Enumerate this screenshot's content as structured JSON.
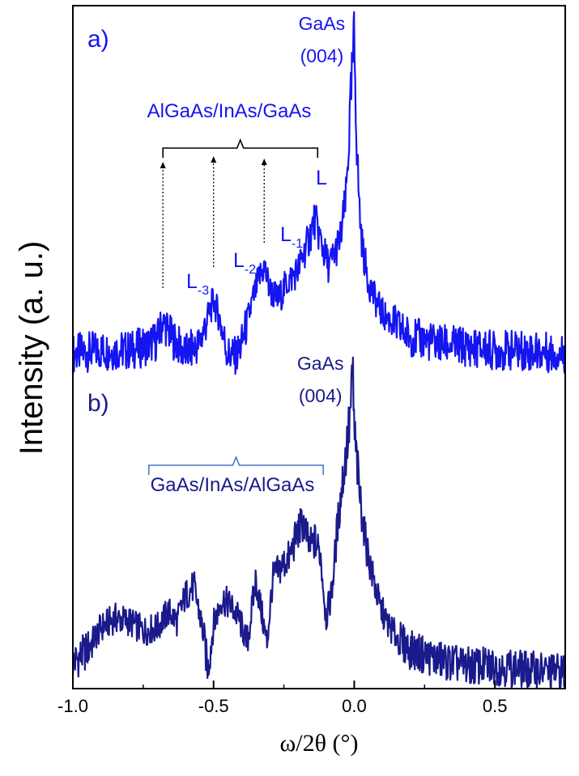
{
  "chart_data": {
    "type": "line",
    "xlabel": "ω/2θ (°)",
    "ylabel": "Intensity (a. u.)",
    "xlim": [
      -1.0,
      0.75
    ],
    "xticks": [
      -1.0,
      -0.5,
      0.0,
      0.5
    ],
    "xtick_labels": [
      "-1.0",
      "-0.5",
      "0.0",
      "0.5"
    ],
    "grid": false,
    "colors": {
      "panel_a": "#1515f0",
      "panel_b": "#1a1a8c",
      "bracket_b": "#4a78c8",
      "axis": "#000000"
    },
    "panels": [
      {
        "label": "a)",
        "substrate_peak": {
          "text_line1": "GaAs",
          "text_line2": "(004)",
          "x": 0.0
        },
        "bracket": {
          "text": "AlGaAs/InAs/GaAs",
          "x_start": -0.68,
          "x_end": -0.13
        },
        "markers": [
          {
            "label": "L",
            "sub": "-3",
            "x": -0.68
          },
          {
            "label": "L",
            "sub": "-2",
            "x": -0.5
          },
          {
            "label": "L",
            "sub": "-1",
            "x": -0.32
          },
          {
            "label": "L",
            "sub": "",
            "x": -0.14
          }
        ],
        "series": [
          {
            "x": [
              -1.0,
              -0.9,
              -0.8,
              -0.75,
              -0.7,
              -0.68,
              -0.65,
              -0.6,
              -0.55,
              -0.52,
              -0.5,
              -0.48,
              -0.45,
              -0.42,
              -0.4,
              -0.37,
              -0.34,
              -0.32,
              -0.3,
              -0.27,
              -0.24,
              -0.2,
              -0.17,
              -0.14,
              -0.11,
              -0.09,
              -0.07,
              -0.05,
              -0.03,
              -0.02,
              -0.01,
              0.0,
              0.01,
              0.02,
              0.03,
              0.05,
              0.07,
              0.1,
              0.15,
              0.2,
              0.3,
              0.4,
              0.5,
              0.6,
              0.75
            ],
            "y": [
              0.06,
              0.07,
              0.07,
              0.08,
              0.1,
              0.16,
              0.11,
              0.06,
              0.09,
              0.17,
              0.22,
              0.17,
              0.06,
              0.05,
              0.09,
              0.19,
              0.28,
              0.32,
              0.25,
              0.22,
              0.27,
              0.31,
              0.38,
              0.46,
              0.37,
              0.32,
              0.36,
              0.4,
              0.52,
              0.68,
              0.85,
              1.0,
              0.66,
              0.47,
              0.37,
              0.28,
              0.23,
              0.18,
              0.14,
              0.11,
              0.09,
              0.08,
              0.07,
              0.07,
              0.06
            ]
          }
        ]
      },
      {
        "label": "b)",
        "substrate_peak": {
          "text_line1": "GaAs",
          "text_line2": "(004)",
          "x": -0.005
        },
        "bracket": {
          "text": "GaAs/InAs/AlGaAs",
          "x_start": -0.73,
          "x_end": -0.11
        },
        "markers": [],
        "series": [
          {
            "x": [
              -1.0,
              -0.95,
              -0.9,
              -0.85,
              -0.8,
              -0.75,
              -0.7,
              -0.66,
              -0.63,
              -0.6,
              -0.57,
              -0.54,
              -0.52,
              -0.5,
              -0.47,
              -0.44,
              -0.41,
              -0.38,
              -0.35,
              -0.33,
              -0.31,
              -0.29,
              -0.26,
              -0.23,
              -0.2,
              -0.18,
              -0.16,
              -0.14,
              -0.12,
              -0.1,
              -0.08,
              -0.06,
              -0.04,
              -0.02,
              -0.01,
              -0.005,
              0.0,
              0.01,
              0.02,
              0.04,
              0.06,
              0.09,
              0.12,
              0.16,
              0.2,
              0.3,
              0.4,
              0.5,
              0.6,
              0.75
            ],
            "y": [
              0.08,
              0.12,
              0.19,
              0.22,
              0.21,
              0.18,
              0.19,
              0.24,
              0.21,
              0.29,
              0.32,
              0.19,
              0.06,
              0.2,
              0.28,
              0.26,
              0.22,
              0.14,
              0.34,
              0.24,
              0.14,
              0.34,
              0.38,
              0.41,
              0.49,
              0.52,
              0.44,
              0.46,
              0.42,
              0.22,
              0.3,
              0.5,
              0.66,
              0.8,
              0.9,
              1.0,
              0.8,
              0.7,
              0.6,
              0.46,
              0.37,
              0.26,
              0.2,
              0.15,
              0.12,
              0.09,
              0.07,
              0.07,
              0.06,
              0.05
            ]
          }
        ]
      }
    ]
  }
}
